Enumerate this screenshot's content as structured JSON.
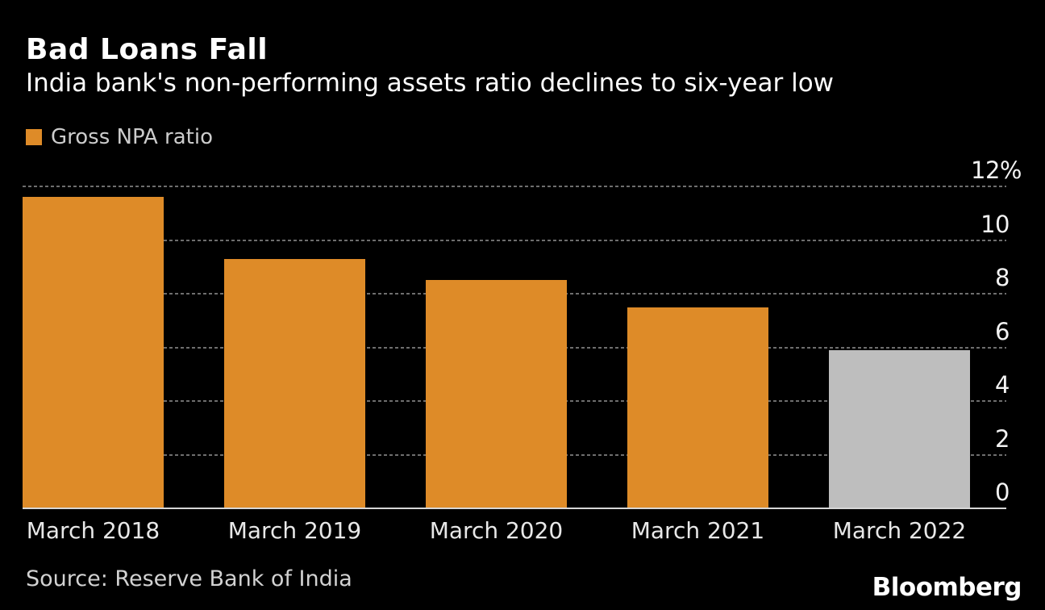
{
  "header": {
    "title": "Bad Loans Fall",
    "subtitle": "India bank's non-performing assets ratio declines to six-year low"
  },
  "legend": {
    "items": [
      {
        "label": "Gross NPA ratio",
        "color": "#DE8B28"
      }
    ]
  },
  "footer": {
    "source": "Source: Reserve Bank of India",
    "brand": "Bloomberg"
  },
  "colors": {
    "background": "#000000",
    "bar_orange": "#DE8B28",
    "bar_gray": "#BEBEBE",
    "gridline": "#6E6E6E",
    "axis_line": "#D6D6D6",
    "title_text": "#FFFFFF",
    "tick_text": "#F2F2F2",
    "muted_text": "#CCCCCC"
  },
  "chart_data": {
    "type": "bar",
    "title": "Bad Loans Fall",
    "subtitle": "India bank's non-performing assets ratio declines to six-year low",
    "categories": [
      "March 2018",
      "March 2019",
      "March 2020",
      "March 2021",
      "March 2022"
    ],
    "series": [
      {
        "name": "Gross NPA ratio",
        "values": [
          11.6,
          9.3,
          8.5,
          7.5,
          5.9
        ]
      }
    ],
    "bar_colors": [
      "#DE8B28",
      "#DE8B28",
      "#DE8B28",
      "#DE8B28",
      "#BEBEBE"
    ],
    "unit": "%",
    "ylim": [
      0,
      12
    ],
    "yticks": [
      0,
      2,
      4,
      6,
      8,
      10,
      12
    ],
    "ytick_labels": [
      "0",
      "2",
      "4",
      "6",
      "8",
      "10",
      "12%"
    ],
    "grid": "horizontal-dashed",
    "gridlines_on": true,
    "value_axis_side": "right",
    "legend_position": "top-left",
    "source": "Source: Reserve Bank of India"
  }
}
